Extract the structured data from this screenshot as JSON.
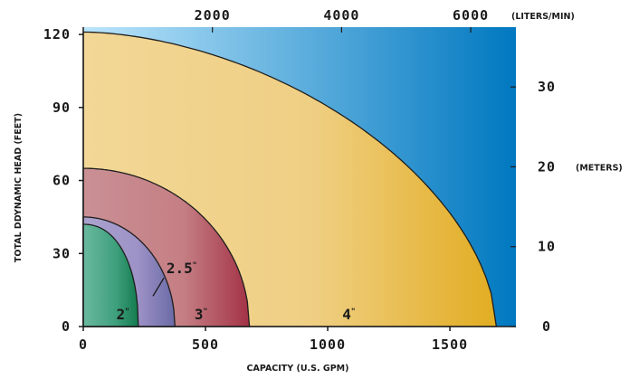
{
  "chart_data": {
    "type": "area",
    "title": "",
    "xlabel": "CAPACITY (U.S. GPM)",
    "ylabel": "TOTAL DDYNAMIC HEAD (FEET)",
    "x_ticks": [
      "0",
      "500",
      "1000",
      "1500"
    ],
    "y_ticks": [
      "0",
      "30",
      "60",
      "90",
      "120"
    ],
    "xlim": [
      0,
      1770
    ],
    "ylim": [
      0,
      123
    ],
    "top_axis": {
      "unit": "(LITERS/MIN)",
      "ticks": [
        {
          "value": 2000,
          "label": "2000"
        },
        {
          "value": 4000,
          "label": "4000"
        },
        {
          "value": 6000,
          "label": "6000"
        }
      ]
    },
    "right_axis": {
      "unit": "(METERS)",
      "ticks": [
        {
          "value": 0,
          "label": "0"
        },
        {
          "value": 10,
          "label": "10"
        },
        {
          "value": 20,
          "label": "20"
        },
        {
          "value": 30,
          "label": "30"
        }
      ]
    },
    "series": [
      {
        "name": "4",
        "max_head": 121,
        "max_capacity": 1690,
        "color": "#f0d08e"
      },
      {
        "name": "3",
        "max_head": 65,
        "max_capacity": 680,
        "color": "#c58a8e"
      },
      {
        "name": "2.5",
        "max_head": 45,
        "max_capacity": 375,
        "color": "#a59ac8"
      },
      {
        "name": "2",
        "max_head": 42,
        "max_capacity": 225,
        "color": "#4fa98a"
      }
    ],
    "region_labels": [
      {
        "text": "4",
        "sup": "\"",
        "x": 1060,
        "y": 3
      },
      {
        "text": "3",
        "sup": "\"",
        "x": 455,
        "y": 3
      },
      {
        "text": "2.5",
        "sup": "\"",
        "x": 340,
        "y": 22
      },
      {
        "text": "2",
        "sup": "\"",
        "x": 135,
        "y": 3
      }
    ],
    "colors": {
      "background_light": "#bde6fb",
      "background_dark": "#0078c0"
    }
  }
}
